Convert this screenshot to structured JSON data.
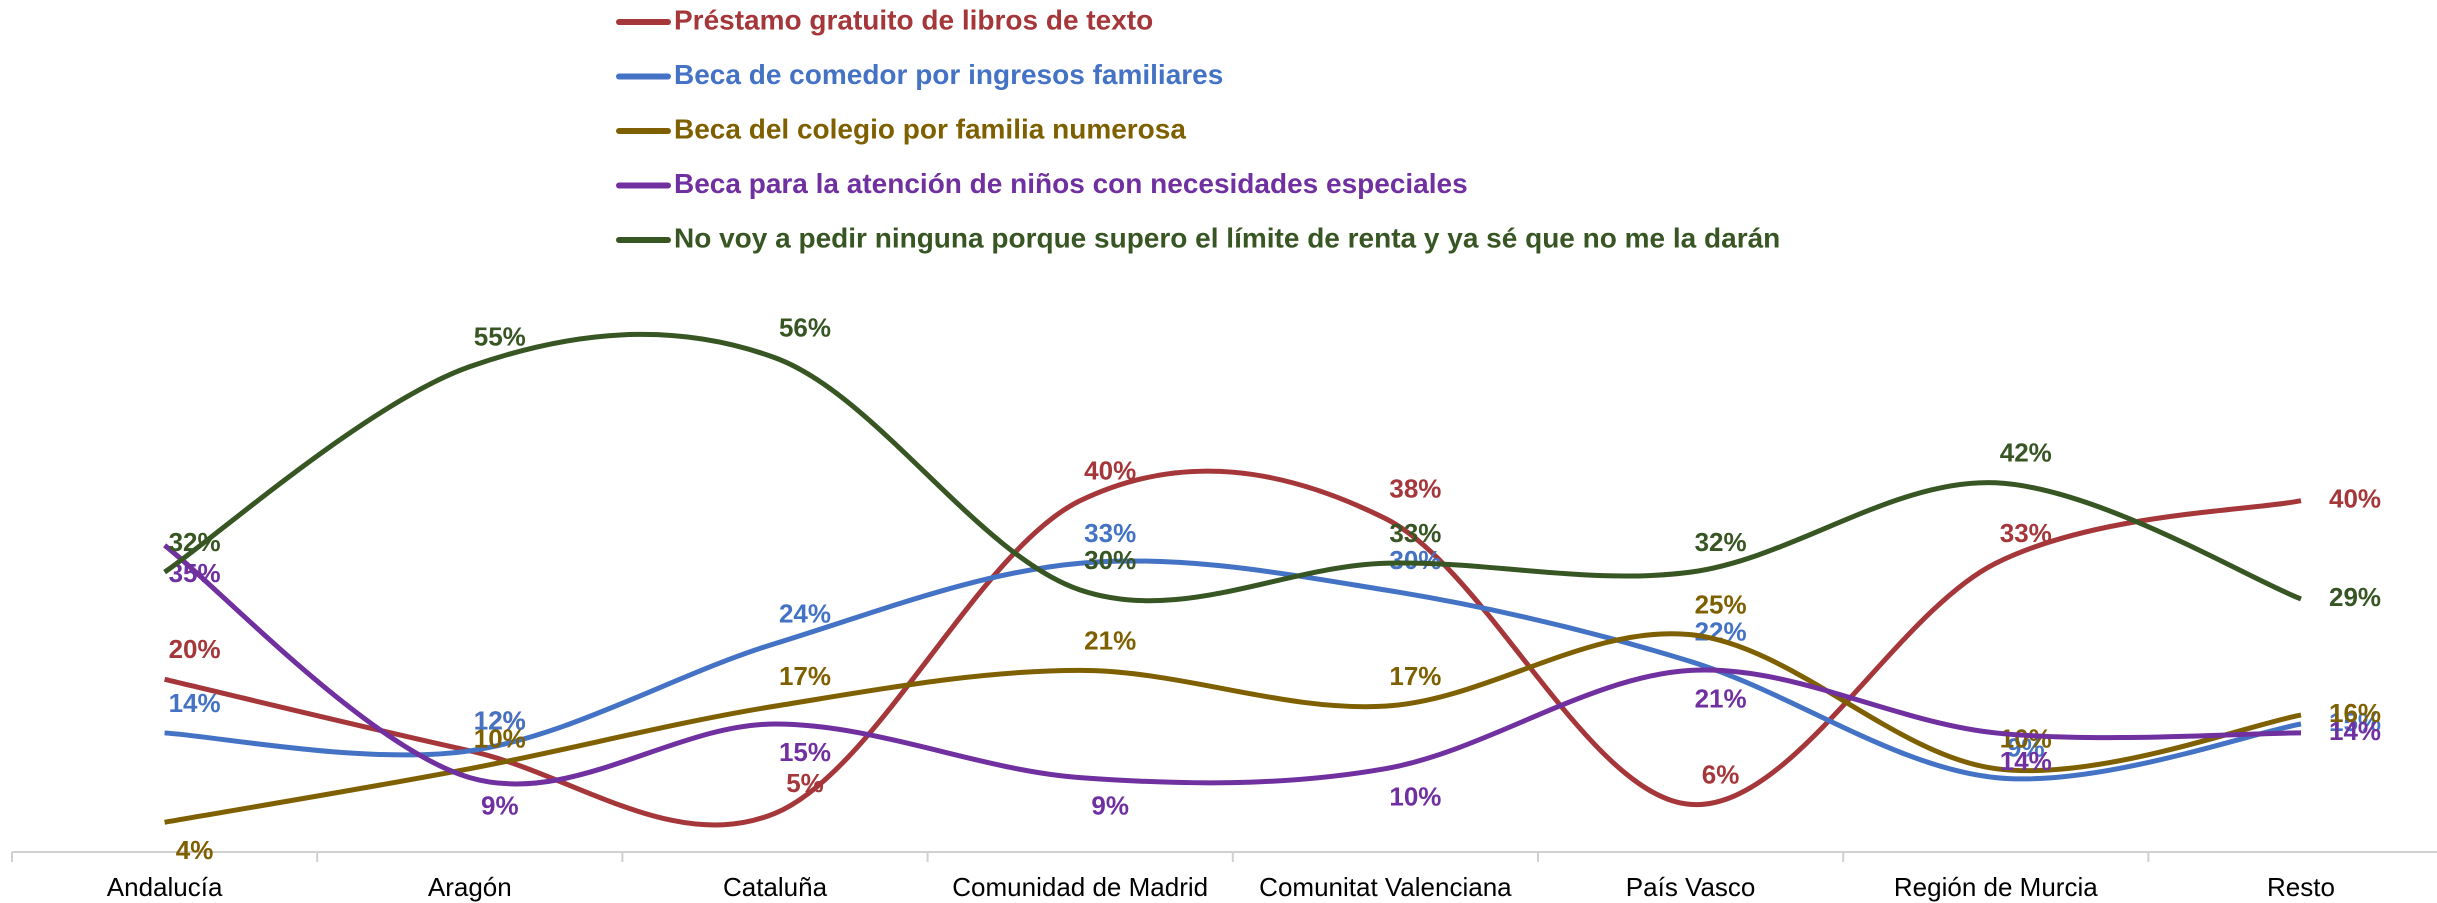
{
  "chart_data": {
    "type": "line",
    "categories": [
      "Andalucía",
      "Aragón",
      "Cataluña",
      "Comunidad de Madrid",
      "Comunitat Valenciana",
      "País Vasco",
      "Región de Murcia",
      "Resto"
    ],
    "series": [
      {
        "name": "Préstamo gratuito de libros de texto",
        "color": "#A5373A",
        "values": [
          20,
          12,
          5,
          40,
          38,
          6,
          33,
          40
        ],
        "value_labels": [
          "20%",
          "12%",
          "5%",
          "40%",
          "38%",
          "6%",
          "33%",
          "40%"
        ]
      },
      {
        "name": "Beca de comedor por ingresos familiares",
        "color": "#4472C4",
        "values": [
          14,
          12,
          24,
          33,
          30,
          22,
          9,
          15
        ],
        "value_labels": [
          "14%",
          "12%",
          "24%",
          "33%",
          "30%",
          "22%",
          "9%",
          "15%"
        ]
      },
      {
        "name": "Beca del colegio por familia numerosa",
        "color": "#7F6000",
        "values": [
          4,
          10,
          17,
          21,
          17,
          25,
          10,
          16
        ],
        "value_labels": [
          "4%",
          "10%",
          "17%",
          "21%",
          "17%",
          "25%",
          "10%",
          "16%"
        ]
      },
      {
        "name": "Beca para la atención de niños con necesidades especiales",
        "color": "#7030A0",
        "values": [
          35,
          9,
          15,
          9,
          10,
          21,
          14,
          14
        ],
        "value_labels": [
          "35%",
          "9%",
          "15%",
          "9%",
          "10%",
          "21%",
          "14%",
          "14%"
        ]
      },
      {
        "name": "No voy a pedir ninguna porque supero el límite de renta y ya sé que no me la darán",
        "color": "#375623",
        "values": [
          32,
          55,
          56,
          30,
          33,
          32,
          42,
          29
        ],
        "value_labels": [
          "32%",
          "55%",
          "56%",
          "30%",
          "33%",
          "32%",
          "42%",
          "29%"
        ]
      }
    ],
    "ylim": [
      0,
      60
    ],
    "legend": "top",
    "smooth": true
  }
}
